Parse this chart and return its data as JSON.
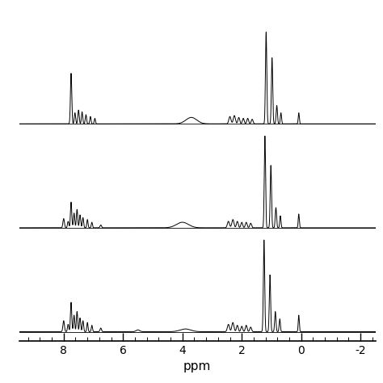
{
  "xlim": [
    9.5,
    -2.5
  ],
  "xticks": [
    8,
    6,
    4,
    2,
    0,
    -2
  ],
  "xlabel": "ppm",
  "xlabel_fontsize": 11,
  "tick_fontsize": 10,
  "background_color": "#ffffff",
  "line_color": "#000000",
  "line_width": 0.7,
  "n_spectra": 3,
  "ylim": [
    -0.01,
    1.08
  ]
}
